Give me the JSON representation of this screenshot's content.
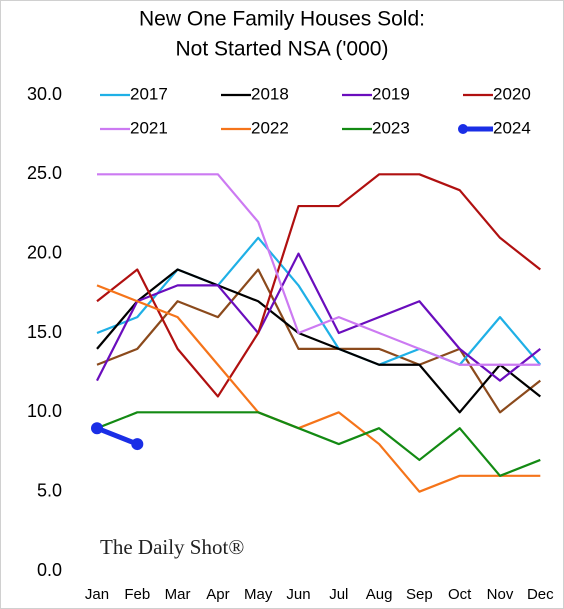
{
  "chart_data": {
    "type": "line",
    "title": [
      "New One Family Houses Sold:",
      "Not Started NSA ('000)"
    ],
    "watermark": "The Daily Shot®",
    "categories": [
      "Jan",
      "Feb",
      "Mar",
      "Apr",
      "May",
      "Jun",
      "Jul",
      "Aug",
      "Sep",
      "Oct",
      "Nov",
      "Dec"
    ],
    "ylim": [
      0,
      30
    ],
    "yticks": [
      {
        "value": 0,
        "label": "0.0"
      },
      {
        "value": 5,
        "label": "5.0"
      },
      {
        "value": 10,
        "label": "10.0"
      },
      {
        "value": 15,
        "label": "15.0"
      },
      {
        "value": 20,
        "label": "20.0"
      },
      {
        "value": 25,
        "label": "25.0"
      },
      {
        "value": 30,
        "label": "30.0"
      }
    ],
    "grid": false,
    "series": [
      {
        "color": "#8b4a1c",
        "values": [
          13,
          14,
          17,
          16,
          19,
          14,
          14,
          14,
          13,
          14,
          10,
          12
        ]
      },
      {
        "name": "2017",
        "color": "#1fb0e6",
        "values": [
          15,
          16,
          19,
          18,
          21,
          18,
          14,
          13,
          14,
          13,
          16,
          13
        ]
      },
      {
        "name": "2018",
        "color": "#000000",
        "values": [
          14,
          17,
          19,
          18,
          17,
          15,
          14,
          13,
          13,
          10,
          13,
          11
        ]
      },
      {
        "name": "2019",
        "color": "#6a0dbd",
        "values": [
          12,
          17,
          18,
          18,
          15,
          20,
          15,
          16,
          17,
          14,
          12,
          14
        ]
      },
      {
        "name": "2020",
        "color": "#b01010",
        "values": [
          17,
          19,
          14,
          11,
          15,
          23,
          23,
          25,
          25,
          24,
          21,
          19
        ]
      },
      {
        "name": "2021",
        "color": "#cc7af2",
        "values": [
          25,
          25,
          25,
          25,
          22,
          15,
          16,
          15,
          14,
          13,
          13,
          13
        ]
      },
      {
        "name": "2022",
        "color": "#f5741a",
        "values": [
          18,
          17,
          16,
          13,
          10,
          9,
          10,
          8,
          5,
          6,
          6,
          6
        ]
      },
      {
        "name": "2023",
        "color": "#138a13",
        "values": [
          9,
          10,
          10,
          10,
          10,
          9,
          8,
          9,
          7,
          9,
          6,
          7
        ]
      },
      {
        "name": "2024",
        "color": "#1a2ee6",
        "markers": true,
        "values": [
          9,
          8,
          null,
          null,
          null,
          null,
          null,
          null,
          null,
          null,
          null,
          null
        ]
      }
    ]
  }
}
